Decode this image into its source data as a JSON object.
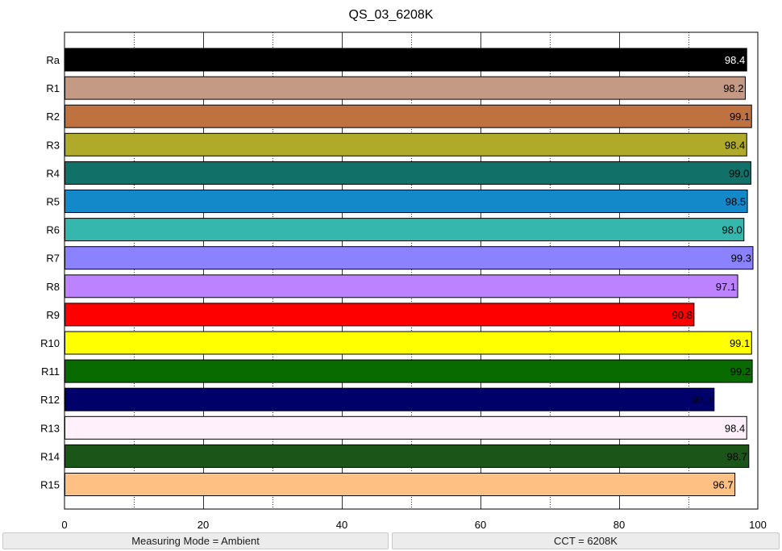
{
  "chart_data": {
    "type": "bar",
    "orientation": "horizontal",
    "title": "QS_03_6208K",
    "xlabel": "",
    "ylabel": "",
    "xlim": [
      0,
      100
    ],
    "x_ticks": [
      0,
      20,
      40,
      60,
      80,
      100
    ],
    "grid": "vertical dotted",
    "categories": [
      "Ra",
      "R1",
      "R2",
      "R3",
      "R4",
      "R5",
      "R6",
      "R7",
      "R8",
      "R9",
      "R10",
      "R11",
      "R12",
      "R13",
      "R14",
      "R15"
    ],
    "values": [
      98.4,
      98.2,
      99.1,
      98.4,
      99.0,
      98.5,
      98.0,
      99.3,
      97.1,
      90.8,
      99.1,
      99.2,
      93.7,
      98.4,
      98.7,
      96.7
    ],
    "value_labels": [
      "98.4",
      "98.2",
      "99.1",
      "98.4",
      "99.0",
      "98.5",
      "98.0",
      "99.3",
      "97.1",
      "90.8",
      "99.1",
      "99.2",
      "93.7",
      "98.4",
      "98.7",
      "96.7"
    ],
    "colors": [
      "#000000",
      "#c49a85",
      "#bf7140",
      "#b0aa2a",
      "#117068",
      "#1389c9",
      "#35b7ae",
      "#8a82ff",
      "#bd82ff",
      "#ff0000",
      "#ffff00",
      "#086b00",
      "#00006b",
      "#fff0fb",
      "#1b5618",
      "#ffc084"
    ],
    "value_label_colors": [
      "#ffffff",
      "#000000",
      "#000000",
      "#000000",
      "#000000",
      "#000000",
      "#000000",
      "#000000",
      "#000000",
      "#000000",
      "#000000",
      "#000000",
      "#000000",
      "#000000",
      "#000000",
      "#000000"
    ]
  },
  "status_bar": {
    "left": "Measuring Mode = Ambient",
    "right": "CCT = 6208K"
  }
}
